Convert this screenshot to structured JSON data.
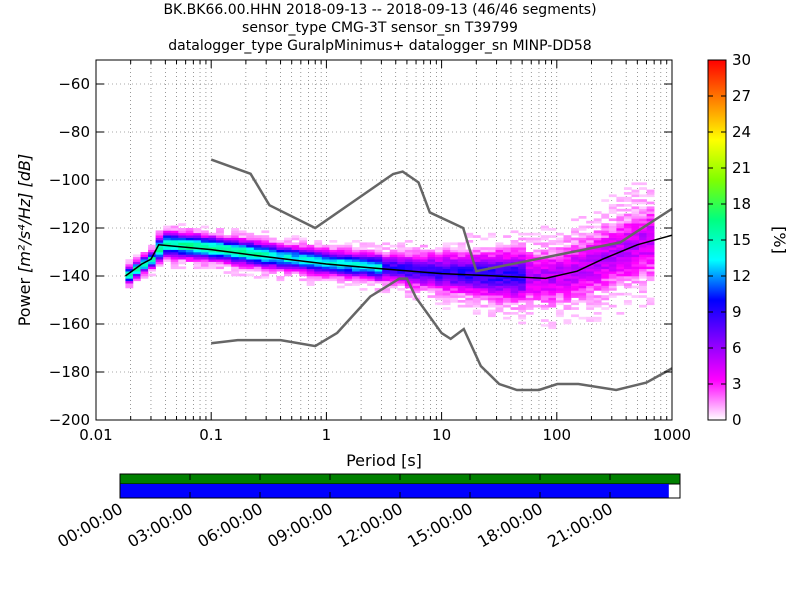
{
  "title_lines": [
    "BK.BK66.00.HHN   2018-09-13 -- 2018-09-13  (46/46 segments)",
    "sensor_type CMG-3T sensor_sn T39799",
    "datalogger_type GuralpMinimus+ datalogger_sn MINP-DD58"
  ],
  "chart_data": {
    "type": "heatmap",
    "xlabel": "Period [s]",
    "ylabel_prefix": "Power",
    "ylabel_units": "[m²/s⁴/Hz] [dB]",
    "x_scale": "log",
    "xlim": [
      0.01,
      1000
    ],
    "ylim": [
      -200,
      -50
    ],
    "x_ticks": [
      0.01,
      0.1,
      1,
      10,
      100,
      1000
    ],
    "x_tick_labels": [
      "0.01",
      "0.1",
      "1",
      "10",
      "100",
      "1000"
    ],
    "y_ticks": [
      -200,
      -180,
      -160,
      -140,
      -120,
      -100,
      -80,
      -60
    ],
    "y_tick_labels": [
      "−200",
      "−180",
      "−160",
      "−140",
      "−120",
      "−100",
      "−80",
      "−60"
    ],
    "grid": true,
    "colorbar": {
      "label": "[%]",
      "range": [
        0,
        30
      ],
      "ticks": [
        0,
        3,
        6,
        9,
        12,
        15,
        18,
        21,
        24,
        27,
        30
      ],
      "tick_labels": [
        "0",
        "3",
        "6",
        "9",
        "12",
        "15",
        "18",
        "21",
        "24",
        "27",
        "30"
      ],
      "colors": [
        "#ffffff",
        "#ff00ff",
        "#8000ff",
        "#0000ff",
        "#00ffff",
        "#00ff80",
        "#80ff00",
        "#ffff00",
        "#ff8000",
        "#ff0000"
      ]
    },
    "mean_curve": {
      "color": "#000000",
      "points": [
        [
          0.018,
          -140
        ],
        [
          0.025,
          -135
        ],
        [
          0.03,
          -133
        ],
        [
          0.035,
          -127
        ],
        [
          0.1,
          -129
        ],
        [
          0.3,
          -132
        ],
        [
          1,
          -135
        ],
        [
          3,
          -137
        ],
        [
          10,
          -139
        ],
        [
          30,
          -140
        ],
        [
          80,
          -141
        ],
        [
          150,
          -138
        ],
        [
          250,
          -133
        ],
        [
          500,
          -127
        ],
        [
          1000,
          -123
        ]
      ]
    },
    "noise_models": {
      "color": "#666666",
      "nhnm": [
        [
          0.1,
          -91.5
        ],
        [
          0.22,
          -97.4
        ],
        [
          0.32,
          -110.5
        ],
        [
          0.8,
          -120
        ],
        [
          3.8,
          -97.5
        ],
        [
          4.6,
          -96.5
        ],
        [
          6.3,
          -101
        ],
        [
          7.9,
          -113.5
        ],
        [
          15.4,
          -120
        ],
        [
          20,
          -138
        ],
        [
          354.8,
          -126
        ],
        [
          1000,
          -112
        ]
      ],
      "nlnm": [
        [
          0.1,
          -168
        ],
        [
          0.17,
          -166.7
        ],
        [
          0.4,
          -166.7
        ],
        [
          0.8,
          -169.2
        ],
        [
          1.24,
          -163.7
        ],
        [
          2.4,
          -148.6
        ],
        [
          4.3,
          -141.1
        ],
        [
          5,
          -141.1
        ],
        [
          6,
          -149
        ],
        [
          10,
          -163.8
        ],
        [
          12,
          -166.2
        ],
        [
          15.6,
          -162.1
        ],
        [
          21.9,
          -177.5
        ],
        [
          31.6,
          -185
        ],
        [
          45,
          -187.5
        ],
        [
          70,
          -187.5
        ],
        [
          101,
          -185
        ],
        [
          154,
          -185
        ],
        [
          328,
          -187.5
        ],
        [
          600,
          -184.4
        ],
        [
          1000,
          -178.5
        ]
      ]
    },
    "time_axis": {
      "tick_labels": [
        "00:00:00",
        "03:00:00",
        "06:00:00",
        "09:00:00",
        "12:00:00",
        "15:00:00",
        "18:00:00",
        "21:00:00"
      ],
      "tick_hours": [
        0,
        3,
        6,
        9,
        12,
        15,
        18,
        21
      ],
      "range_hours": [
        0,
        24
      ],
      "data_available_color": "#008000",
      "psd_coverage_color": "#0000ff",
      "psd_coverage_fraction": 0.98
    }
  }
}
